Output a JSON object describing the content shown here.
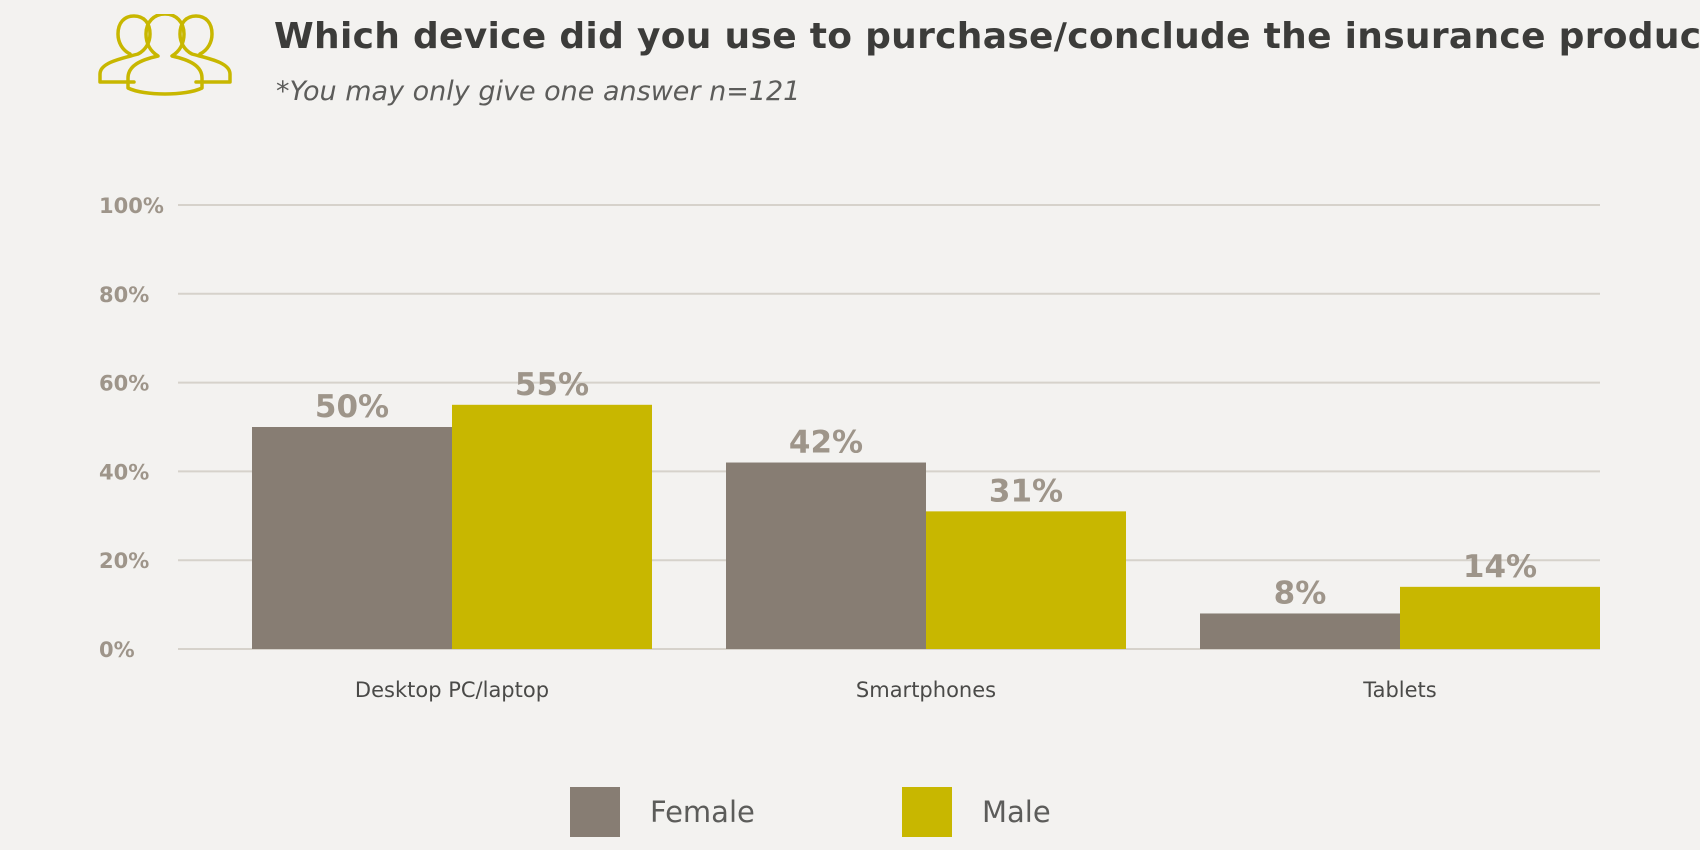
{
  "header": {
    "title": "Which device did you use to purchase/conclude the insurance product?",
    "subtitle": "*You may only give one answer n=121",
    "icon": "people-group-icon"
  },
  "colors": {
    "female": "#877d73",
    "male": "#c8b700",
    "icon": "#c8b700",
    "grid": "#d6d2cb",
    "tick_label": "#9e958a",
    "category_label": "#4a4a48",
    "data_label": "#9e958a"
  },
  "chart_data": {
    "type": "bar",
    "categories": [
      "Desktop PC/laptop",
      "Smartphones",
      "Tablets"
    ],
    "series": [
      {
        "name": "Female",
        "values": [
          50,
          42,
          8
        ]
      },
      {
        "name": "Male",
        "values": [
          55,
          31,
          14
        ]
      }
    ],
    "data_labels": [
      [
        "50%",
        "42%",
        "8%"
      ],
      [
        "55%",
        "31%",
        "14%"
      ]
    ],
    "yticks": [
      "0%",
      "20%",
      "40%",
      "60%",
      "80%",
      "100%"
    ],
    "ylim": [
      0,
      100
    ],
    "grid": true,
    "legend_position": "bottom-center"
  },
  "legend": {
    "items": [
      {
        "label": "Female"
      },
      {
        "label": "Male"
      }
    ]
  }
}
